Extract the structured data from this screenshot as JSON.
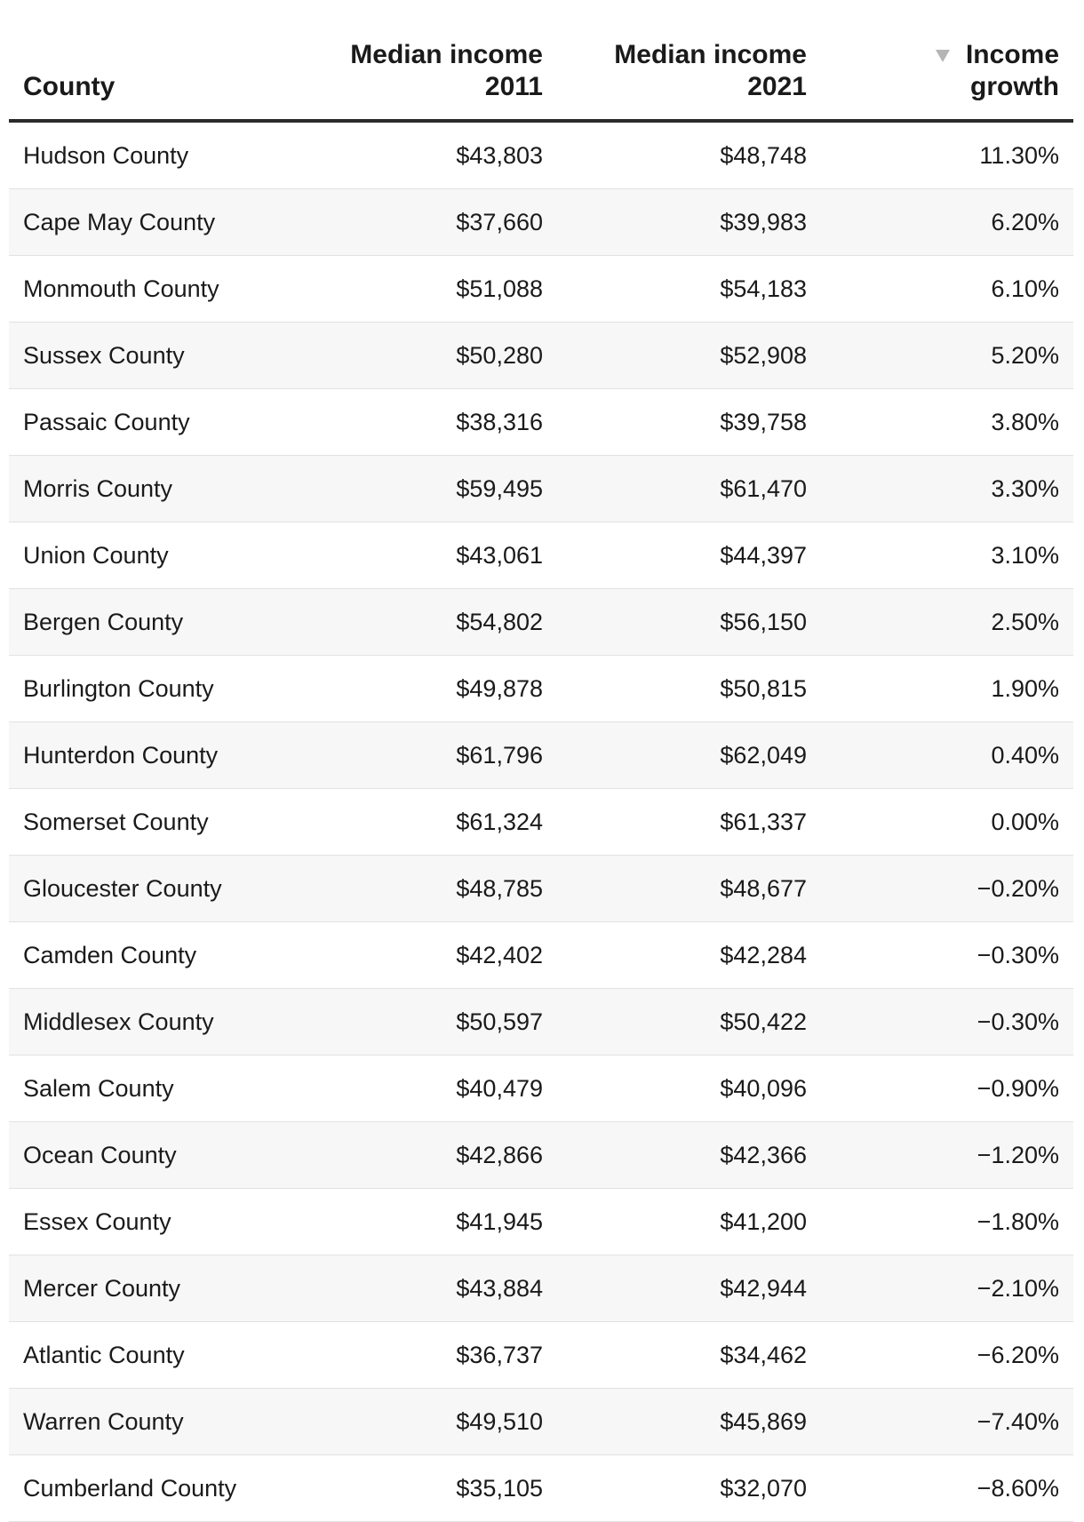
{
  "table": {
    "headers": {
      "county": "County",
      "income_2011_line1": "Median income",
      "income_2011_line2": "2011",
      "income_2021_line1": "Median income",
      "income_2021_line2": "2021",
      "growth_line1": "Income",
      "growth_line2": "growth"
    },
    "sort": {
      "column": "growth",
      "direction": "descending",
      "icon": "sort-descending-icon",
      "icon_color": "#b5b5b5"
    },
    "rows": [
      {
        "county": "Hudson County",
        "income_2011": "$43,803",
        "income_2021": "$48,748",
        "growth": "11.30%"
      },
      {
        "county": "Cape May County",
        "income_2011": "$37,660",
        "income_2021": "$39,983",
        "growth": "6.20%"
      },
      {
        "county": "Monmouth County",
        "income_2011": "$51,088",
        "income_2021": "$54,183",
        "growth": "6.10%"
      },
      {
        "county": "Sussex County",
        "income_2011": "$50,280",
        "income_2021": "$52,908",
        "growth": "5.20%"
      },
      {
        "county": "Passaic County",
        "income_2011": "$38,316",
        "income_2021": "$39,758",
        "growth": "3.80%"
      },
      {
        "county": "Morris County",
        "income_2011": "$59,495",
        "income_2021": "$61,470",
        "growth": "3.30%"
      },
      {
        "county": "Union County",
        "income_2011": "$43,061",
        "income_2021": "$44,397",
        "growth": "3.10%"
      },
      {
        "county": "Bergen County",
        "income_2011": "$54,802",
        "income_2021": "$56,150",
        "growth": "2.50%"
      },
      {
        "county": "Burlington County",
        "income_2011": "$49,878",
        "income_2021": "$50,815",
        "growth": "1.90%"
      },
      {
        "county": "Hunterdon County",
        "income_2011": "$61,796",
        "income_2021": "$62,049",
        "growth": "0.40%"
      },
      {
        "county": "Somerset County",
        "income_2011": "$61,324",
        "income_2021": "$61,337",
        "growth": "0.00%"
      },
      {
        "county": "Gloucester County",
        "income_2011": "$48,785",
        "income_2021": "$48,677",
        "growth": "−0.20%"
      },
      {
        "county": "Camden County",
        "income_2011": "$42,402",
        "income_2021": "$42,284",
        "growth": "−0.30%"
      },
      {
        "county": "Middlesex County",
        "income_2011": "$50,597",
        "income_2021": "$50,422",
        "growth": "−0.30%"
      },
      {
        "county": "Salem County",
        "income_2011": "$40,479",
        "income_2021": "$40,096",
        "growth": "−0.90%"
      },
      {
        "county": "Ocean County",
        "income_2011": "$42,866",
        "income_2021": "$42,366",
        "growth": "−1.20%"
      },
      {
        "county": "Essex County",
        "income_2011": "$41,945",
        "income_2021": "$41,200",
        "growth": "−1.80%"
      },
      {
        "county": "Mercer County",
        "income_2011": "$43,884",
        "income_2021": "$42,944",
        "growth": "−2.10%"
      },
      {
        "county": "Atlantic County",
        "income_2011": "$36,737",
        "income_2021": "$34,462",
        "growth": "−6.20%"
      },
      {
        "county": "Warren County",
        "income_2011": "$49,510",
        "income_2021": "$45,869",
        "growth": "−7.40%"
      },
      {
        "county": "Cumberland County",
        "income_2011": "$35,105",
        "income_2021": "$32,070",
        "growth": "−8.60%"
      }
    ]
  }
}
